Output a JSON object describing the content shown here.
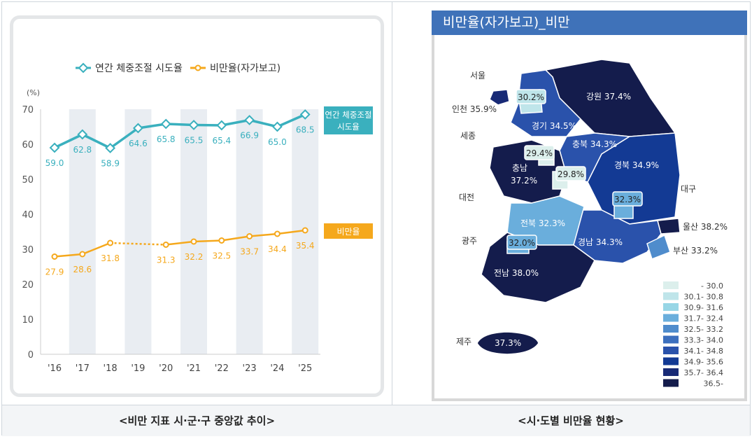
{
  "chart_data": [
    {
      "type": "line",
      "title": "",
      "ylabel": "(%)",
      "ylim": [
        0,
        70
      ],
      "yticks": [
        0,
        10,
        20,
        30,
        40,
        50,
        60,
        70
      ],
      "categories": [
        "'16",
        "'17",
        "'18",
        "'19",
        "'20",
        "'21",
        "'22",
        "'23",
        "'24",
        "'25"
      ],
      "series": [
        {
          "name": "연간 체중조절 시도율",
          "end_label": "연간 체중조절 시도율",
          "color": "#3ab0be",
          "marker": "diamond",
          "values": [
            59.0,
            62.8,
            58.9,
            64.6,
            65.8,
            65.5,
            65.4,
            66.9,
            65.0,
            68.5
          ],
          "labels": [
            "59.0",
            "62.8",
            "58.9",
            "64.6",
            "65.8",
            "65.5",
            "65.4",
            "66.9",
            "65.0",
            "68.5"
          ]
        },
        {
          "name": "비만율(자가보고)",
          "end_label": "비만율",
          "color": "#f5a81c",
          "marker": "circle",
          "values": [
            27.9,
            28.6,
            31.8,
            null,
            31.3,
            32.2,
            32.5,
            33.7,
            34.4,
            35.4
          ],
          "labels": [
            "27.9",
            "28.6",
            "31.8",
            "",
            "31.3",
            "32.2",
            "32.5",
            "33.7",
            "34.4",
            "35.4"
          ],
          "dotted_gap": [
            "'18",
            "'20"
          ]
        }
      ],
      "grid": false
    },
    {
      "type": "choropleth",
      "title": "비만율(자가보고)_비만",
      "regions": [
        {
          "name": "서울",
          "value": "30.2"
        },
        {
          "name": "인천",
          "value": "35.9"
        },
        {
          "name": "경기",
          "value": "34.5"
        },
        {
          "name": "강원",
          "value": "37.4"
        },
        {
          "name": "세종",
          "value": "29.4"
        },
        {
          "name": "충북",
          "value": "34.3"
        },
        {
          "name": "충남",
          "value": "37.2"
        },
        {
          "name": "대전",
          "value": "29.8"
        },
        {
          "name": "경북",
          "value": "34.9"
        },
        {
          "name": "대구",
          "value": "32.3"
        },
        {
          "name": "전북",
          "value": "32.3"
        },
        {
          "name": "울산",
          "value": "38.2"
        },
        {
          "name": "광주",
          "value": "32.0"
        },
        {
          "name": "경남",
          "value": "34.3"
        },
        {
          "name": "부산",
          "value": "33.2"
        },
        {
          "name": "전남",
          "value": "38.0"
        },
        {
          "name": "제주",
          "value": "37.3"
        }
      ],
      "legend": [
        {
          "label": "- 30.0",
          "color": "#dcefec"
        },
        {
          "label": "30.1- 30.8",
          "color": "#bfe5ea"
        },
        {
          "label": "30.9- 31.6",
          "color": "#97d6e6"
        },
        {
          "label": "31.7- 32.4",
          "color": "#6aaedc"
        },
        {
          "label": "32.5- 33.2",
          "color": "#4f8ccc"
        },
        {
          "label": "33.3- 34.0",
          "color": "#3c6fbe"
        },
        {
          "label": "34.1- 34.8",
          "color": "#2a52ab"
        },
        {
          "label": "34.9- 35.6",
          "color": "#133a94"
        },
        {
          "label": "35.7- 36.4",
          "color": "#182a76"
        },
        {
          "label": "36.5-",
          "color": "#141c4c"
        }
      ]
    }
  ],
  "captions": {
    "left": "<비만 지표 시·군·구 중앙값 추이>",
    "right": "<시·도별 비만율 현황>"
  }
}
